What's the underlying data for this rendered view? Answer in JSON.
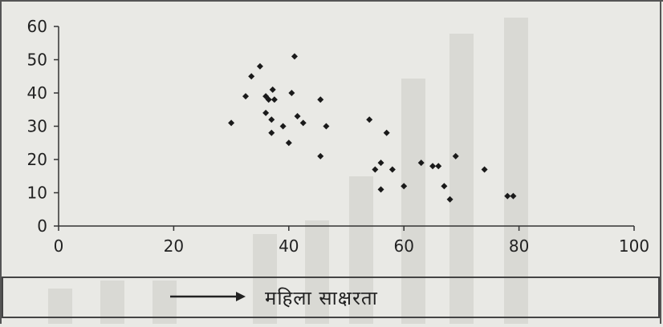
{
  "chart_data": {
    "type": "scatter",
    "title": "",
    "xlabel": "महिला साक्षरता",
    "ylabel": "",
    "xlim": [
      0,
      100
    ],
    "ylim": [
      0,
      60
    ],
    "x_ticks": [
      "0",
      "20",
      "40",
      "60",
      "80",
      "100"
    ],
    "y_ticks": [
      "0",
      "10",
      "20",
      "30",
      "40",
      "50",
      "60"
    ],
    "grid": false,
    "legend": "none",
    "marker_color": "#1a1a1a",
    "axis_color": "#333333",
    "points": [
      {
        "x": 30,
        "y": 31
      },
      {
        "x": 32.5,
        "y": 39
      },
      {
        "x": 33.5,
        "y": 45
      },
      {
        "x": 35,
        "y": 48
      },
      {
        "x": 36,
        "y": 39
      },
      {
        "x": 36,
        "y": 34
      },
      {
        "x": 36.5,
        "y": 38
      },
      {
        "x": 37,
        "y": 32
      },
      {
        "x": 37,
        "y": 28
      },
      {
        "x": 37.2,
        "y": 41
      },
      {
        "x": 37.5,
        "y": 38
      },
      {
        "x": 39,
        "y": 30
      },
      {
        "x": 40,
        "y": 25
      },
      {
        "x": 40.5,
        "y": 40
      },
      {
        "x": 41,
        "y": 51
      },
      {
        "x": 41.5,
        "y": 33
      },
      {
        "x": 42.5,
        "y": 31
      },
      {
        "x": 45.5,
        "y": 38
      },
      {
        "x": 45.5,
        "y": 21
      },
      {
        "x": 46.5,
        "y": 30
      },
      {
        "x": 54,
        "y": 32
      },
      {
        "x": 55,
        "y": 17
      },
      {
        "x": 56,
        "y": 19
      },
      {
        "x": 56,
        "y": 11
      },
      {
        "x": 57,
        "y": 28
      },
      {
        "x": 58,
        "y": 17
      },
      {
        "x": 60,
        "y": 12
      },
      {
        "x": 63,
        "y": 19
      },
      {
        "x": 65,
        "y": 18
      },
      {
        "x": 66,
        "y": 18
      },
      {
        "x": 67,
        "y": 12
      },
      {
        "x": 68,
        "y": 8
      },
      {
        "x": 69,
        "y": 21
      },
      {
        "x": 74,
        "y": 17
      },
      {
        "x": 78,
        "y": 9
      },
      {
        "x": 79,
        "y": 9
      }
    ]
  }
}
